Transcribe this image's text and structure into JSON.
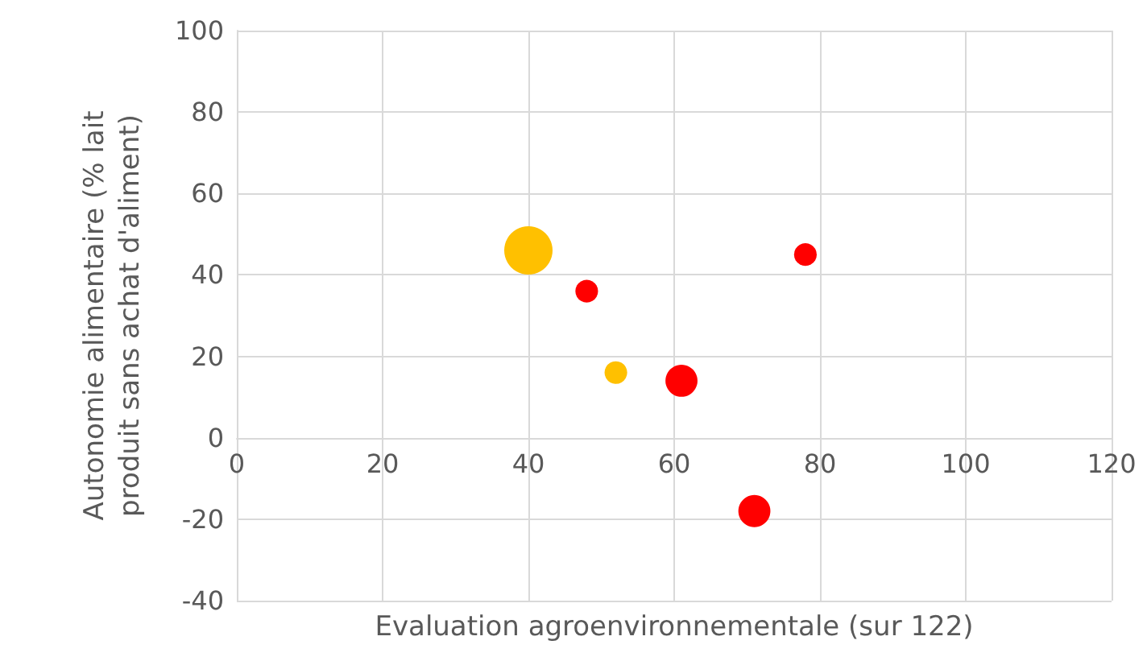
{
  "chart_data": {
    "type": "bubble",
    "xlabel": "Evaluation agroenvironnementale (sur 122)",
    "ylabel": "Autonomie alimentaire (% lait produit sans achat d'aliment)",
    "xlim": [
      0,
      120
    ],
    "xticks": [
      0,
      20,
      40,
      60,
      80,
      100,
      120
    ],
    "ylim": [
      -40,
      100
    ],
    "yticks": [
      -40,
      -20,
      0,
      20,
      40,
      60,
      80,
      100
    ],
    "grid": true,
    "series": [
      {
        "color": "#ffc000",
        "x": [
          40,
          52
        ],
        "values": [
          46,
          16
        ],
        "sizes": [
          1,
          0.22
        ]
      },
      {
        "color": "#ff0000",
        "x": [
          48,
          61,
          78,
          71
        ],
        "values": [
          36,
          14,
          45,
          -18
        ],
        "sizes": [
          0.22,
          0.44,
          0.22,
          0.44
        ]
      }
    ]
  }
}
